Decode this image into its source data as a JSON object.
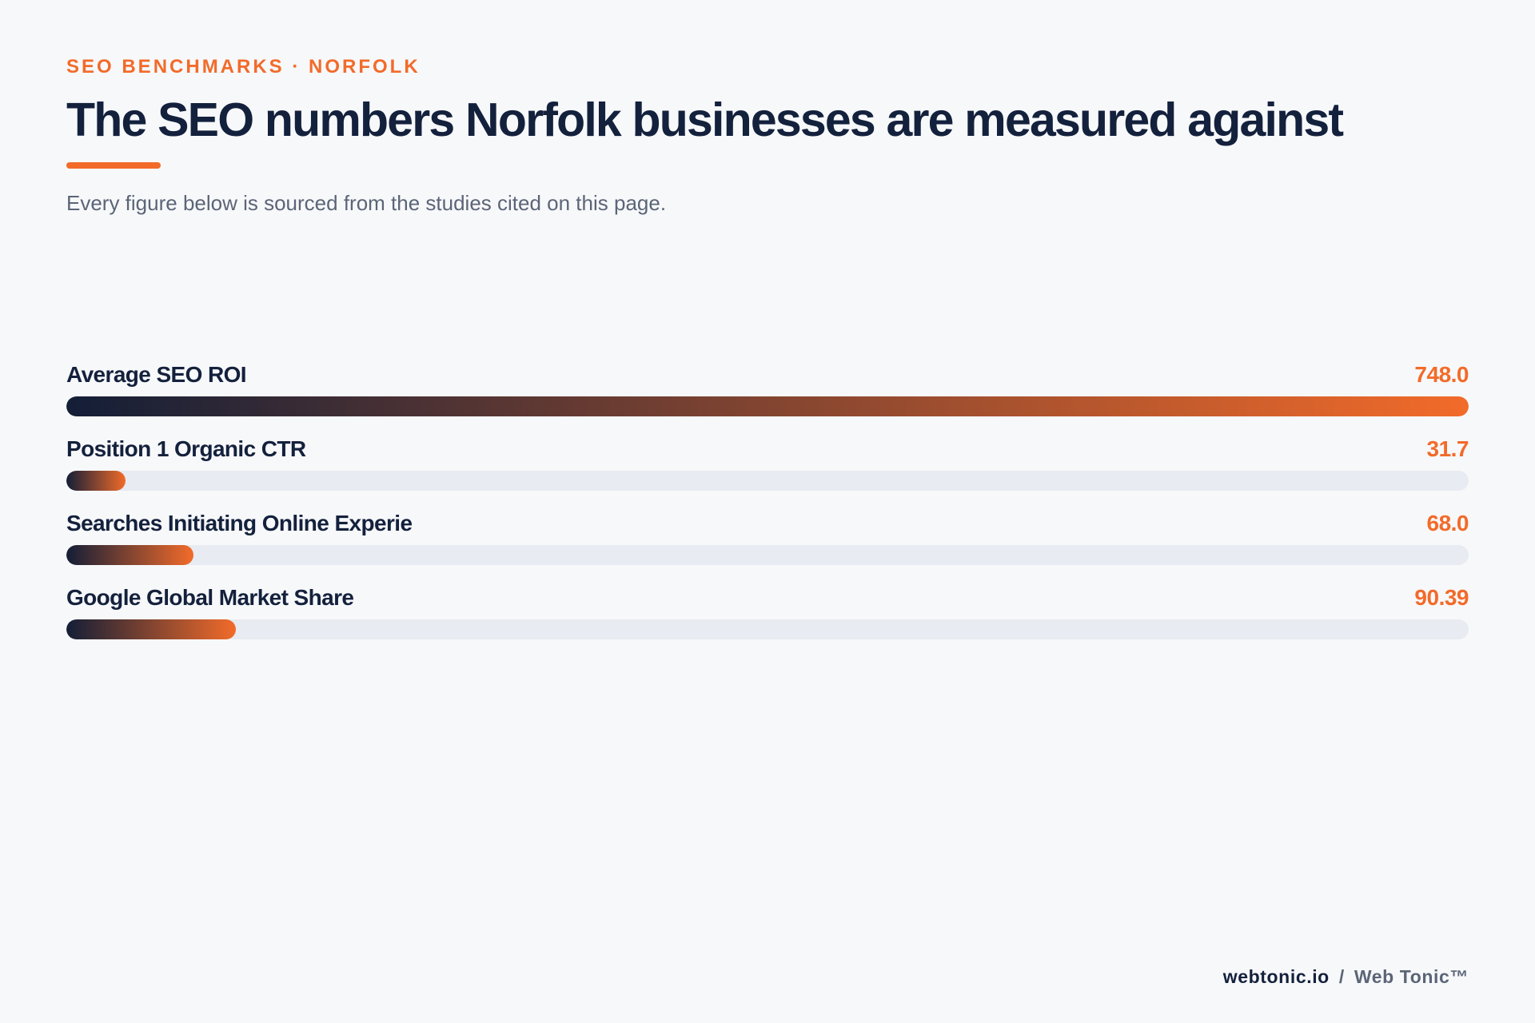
{
  "header": {
    "eyebrow": "SEO BENCHMARKS · NORFOLK",
    "title": "The SEO numbers Norfolk businesses are measured against",
    "subtitle": "Every figure below is sourced from the studies cited on this page."
  },
  "chart_data": {
    "type": "bar",
    "orientation": "horizontal",
    "categories": [
      "Average SEO ROI",
      "Position 1 Organic CTR",
      "Searches Initiating Online Experie",
      "Google Global Market Share"
    ],
    "values": [
      748.0,
      31.7,
      68.0,
      90.39
    ],
    "value_labels": [
      "748.0",
      "31.7",
      "68.0",
      "90.39"
    ],
    "title": "The SEO numbers Norfolk businesses are measured against",
    "xlim": [
      0,
      748.0
    ],
    "grid": false,
    "colors": {
      "gradient_start": "#131e37",
      "gradient_end": "#f26b2a",
      "track": "#e8ebf1",
      "value_text": "#f26b2a"
    }
  },
  "footer": {
    "domain": "webtonic.io",
    "separator": "/",
    "brand": "Web Tonic™"
  }
}
